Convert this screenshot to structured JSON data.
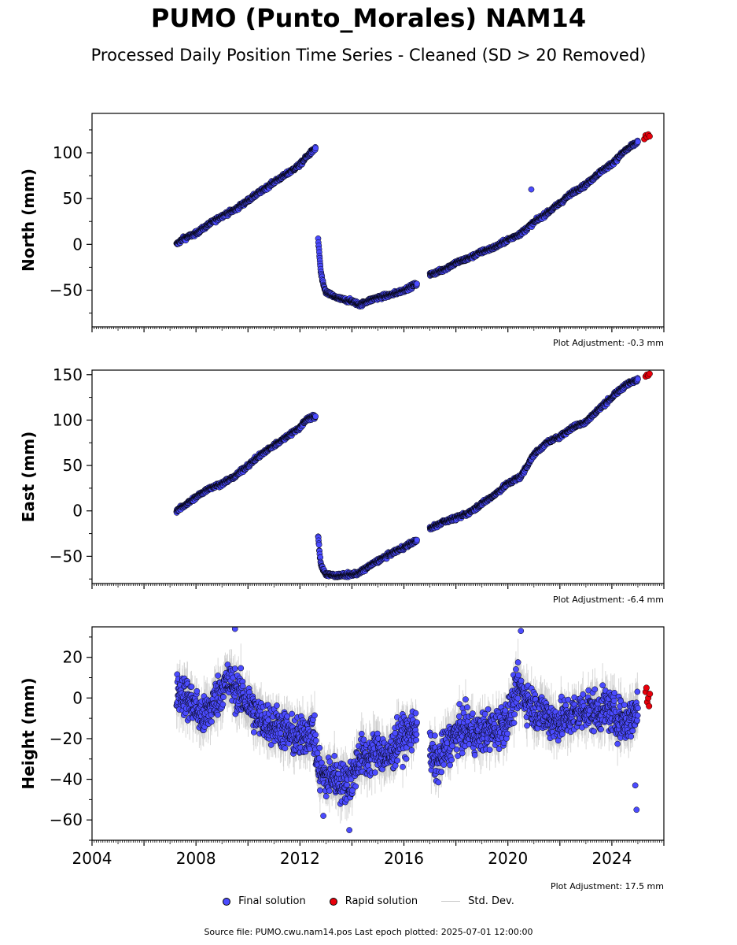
{
  "title": "PUMO (Punto_Morales) NAM14",
  "subtitle": "Processed Daily Position Time Series - Cleaned (SD > 20 Removed)",
  "footer": "Source file: PUMO.cwu.nam14.pos  Last epoch plotted: 2025-07-01 12:00:00",
  "legend": {
    "final": "Final solution",
    "rapid": "Rapid solution",
    "std": "Std. Dev."
  },
  "colors": {
    "final": "#4b4bff",
    "rapid": "#e8000b",
    "std": "#c8c8c8",
    "marker_edge": "#000000"
  },
  "chart_data": [
    {
      "type": "scatter",
      "ylabel": "North (mm)",
      "ylim": [
        -90,
        143
      ],
      "yticks": [
        -50,
        0,
        50,
        100
      ],
      "xlim": [
        2004.0,
        2026.0
      ],
      "adjustment": "Plot Adjustment: -0.3 mm",
      "series": [
        {
          "segments": [
            {
              "x": [
                2007.25,
                2007.5,
                2008.0,
                2008.5,
                2009.0,
                2009.5,
                2010.0,
                2010.5,
                2011.0,
                2011.5,
                2012.0,
                2012.3,
                2012.6
              ],
              "y": [
                0,
                6,
                12,
                22,
                31,
                38,
                48,
                58,
                68,
                77,
                87,
                97,
                105
              ]
            },
            {
              "x": [
                2012.7,
                2012.75,
                2012.8,
                2012.9,
                2013.0,
                2013.3,
                2013.6,
                2014.0,
                2014.3,
                2014.6,
                2015.0,
                2015.5,
                2016.0,
                2016.5
              ],
              "y": [
                5,
                -12,
                -30,
                -45,
                -52,
                -57,
                -60,
                -62,
                -66,
                -62,
                -58,
                -55,
                -50,
                -43
              ]
            },
            {
              "x": [
                2017.0,
                2017.5,
                2018.0,
                2018.5,
                2019.0,
                2019.5,
                2020.0,
                2020.5,
                2021.0,
                2021.5,
                2022.0,
                2022.5,
                2023.0,
                2023.5,
                2024.0,
                2024.5,
                2025.0
              ],
              "y": [
                -33,
                -28,
                -20,
                -15,
                -8,
                -3,
                5,
                12,
                24,
                34,
                45,
                57,
                65,
                78,
                88,
                102,
                112
              ]
            }
          ]
        },
        {
          "rapid": {
            "x": [
              2025.25,
              2025.3,
              2025.35,
              2025.4,
              2025.45
            ],
            "y": [
              115,
              119,
              117,
              120,
              118
            ]
          }
        }
      ],
      "outliers": {
        "x": [
          2020.9
        ],
        "y": [
          60
        ]
      }
    },
    {
      "type": "scatter",
      "ylabel": "East (mm)",
      "ylim": [
        -80,
        155
      ],
      "yticks": [
        -50,
        0,
        50,
        100,
        150
      ],
      "xlim": [
        2004.0,
        2026.0
      ],
      "adjustment": "Plot Adjustment: -6.4 mm",
      "series": [
        {
          "segments": [
            {
              "x": [
                2007.25,
                2007.5,
                2008.0,
                2008.5,
                2009.0,
                2009.5,
                2010.0,
                2010.5,
                2011.0,
                2011.5,
                2012.0,
                2012.3,
                2012.6
              ],
              "y": [
                0,
                5,
                15,
                25,
                30,
                38,
                50,
                62,
                72,
                82,
                92,
                102,
                104
              ]
            },
            {
              "x": [
                2012.7,
                2012.75,
                2012.8,
                2012.9,
                2013.0,
                2013.3,
                2013.6,
                2014.0,
                2014.3,
                2014.6,
                2015.0,
                2015.5,
                2016.0,
                2016.5
              ],
              "y": [
                -28,
                -45,
                -58,
                -65,
                -70,
                -71,
                -71,
                -70,
                -68,
                -62,
                -55,
                -47,
                -40,
                -32
              ]
            },
            {
              "x": [
                2017.0,
                2017.5,
                2018.0,
                2018.5,
                2019.0,
                2019.5,
                2020.0,
                2020.5,
                2021.0,
                2021.5,
                2022.0,
                2022.5,
                2023.0,
                2023.5,
                2024.0,
                2024.5,
                2025.0
              ],
              "y": [
                -20,
                -12,
                -8,
                -2,
                8,
                18,
                30,
                38,
                62,
                75,
                82,
                92,
                98,
                112,
                125,
                138,
                145
              ]
            }
          ]
        },
        {
          "rapid": {
            "x": [
              2025.3,
              2025.35,
              2025.4,
              2025.45
            ],
            "y": [
              148,
              150,
              149,
              151
            ]
          }
        }
      ],
      "outliers": {
        "x": [],
        "y": []
      }
    },
    {
      "type": "scatter",
      "ylabel": "Height (mm)",
      "ylim": [
        -70,
        35
      ],
      "yticks": [
        -60,
        -40,
        -20,
        0,
        20
      ],
      "xlim": [
        2004.0,
        2026.0
      ],
      "xticks": [
        2004,
        2008,
        2012,
        2016,
        2020,
        2024
      ],
      "xticklabels": [
        "2004",
        "2008",
        "2012",
        "2016",
        "2020",
        "2024"
      ],
      "adjustment": "Plot Adjustment: 17.5 mm",
      "series": [
        {
          "segments": [
            {
              "x": [
                2007.25,
                2007.5,
                2008.0,
                2008.3,
                2008.7,
                2009.0,
                2009.3,
                2009.6,
                2010.0,
                2010.4,
                2010.8,
                2011.2,
                2011.6,
                2012.0,
                2012.5,
                2012.7,
                2013.0,
                2013.3,
                2013.6,
                2014.0,
                2014.3,
                2014.6,
                2015.0,
                2015.4,
                2015.8,
                2016.2,
                2016.5
              ],
              "y": [
                5,
                2,
                -5,
                -10,
                -2,
                5,
                8,
                3,
                -2,
                -10,
                -12,
                -14,
                -18,
                -20,
                -15,
                -35,
                -40,
                -38,
                -42,
                -40,
                -28,
                -30,
                -25,
                -30,
                -20,
                -18,
                -12
              ]
            },
            {
              "x": [
                2017.0,
                2017.3,
                2017.6,
                2018.0,
                2018.4,
                2018.8,
                2019.2,
                2019.6,
                2020.0,
                2020.4,
                2020.7,
                2021.0,
                2021.4,
                2021.8,
                2022.2,
                2022.6,
                2023.0,
                2023.4,
                2023.8,
                2024.2,
                2024.6,
                2025.0
              ],
              "y": [
                -28,
                -32,
                -25,
                -18,
                -15,
                -18,
                -16,
                -15,
                -10,
                5,
                0,
                -5,
                -8,
                -12,
                -10,
                -8,
                -5,
                -7,
                -5,
                -10,
                -12,
                -5
              ]
            }
          ]
        },
        {
          "rapid": {
            "x": [
              2025.3,
              2025.33,
              2025.36,
              2025.4,
              2025.43,
              2025.46
            ],
            "y": [
              3,
              5,
              -2,
              0,
              -4,
              2
            ]
          }
        }
      ],
      "outliers": {
        "x": [
          2009.5,
          2012.9,
          2013.9,
          2020.5,
          2024.9,
          2024.95
        ],
        "y": [
          34,
          -58,
          -65,
          33,
          -43,
          -55
        ]
      }
    }
  ]
}
